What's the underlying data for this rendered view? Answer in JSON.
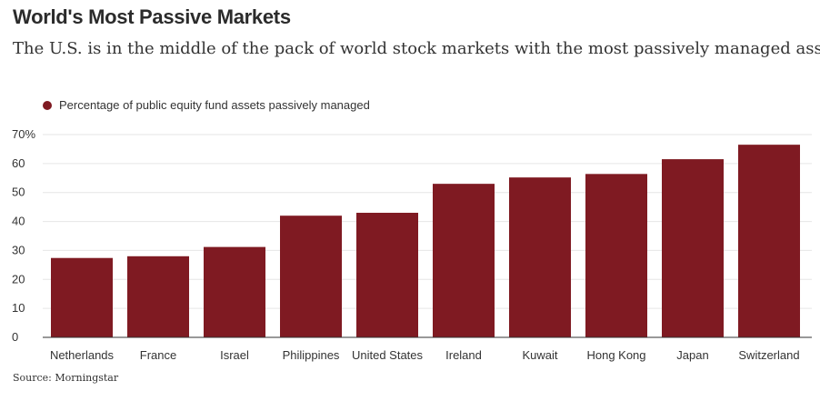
{
  "header": {
    "title": "World's Most Passive Markets",
    "subtitle": "The U.S. is in the middle of the pack of world stock markets with the most passively managed assets"
  },
  "footer": {
    "source": "Source: Morningstar"
  },
  "colors": {
    "bar": "#7f1a22",
    "grid": "#e6e6e6",
    "axis": "#333333"
  },
  "chart_data": {
    "type": "bar",
    "title": "World's Most Passive Markets",
    "subtitle": "The U.S. is in the middle of the pack of world stock markets with the most passively managed assets",
    "categories": [
      "Netherlands",
      "France",
      "Israel",
      "Philippines",
      "United States",
      "Ireland",
      "Kuwait",
      "Hong Kong",
      "Japan",
      "Switzerland"
    ],
    "series": [
      {
        "name": "Percentage of public equity fund assets passively managed",
        "values": [
          27.4,
          28,
          31.2,
          42,
          43,
          53,
          55.2,
          56.4,
          61.5,
          66.5
        ]
      }
    ],
    "ylim": [
      0,
      70
    ],
    "yticks": [
      0,
      10,
      20,
      30,
      40,
      50,
      60,
      70
    ],
    "ytick_labels": [
      "0",
      "10",
      "20",
      "30",
      "40",
      "50",
      "60",
      "70%"
    ],
    "xlabel": "",
    "ylabel": "",
    "grid": true,
    "legend_position": "top-left"
  }
}
